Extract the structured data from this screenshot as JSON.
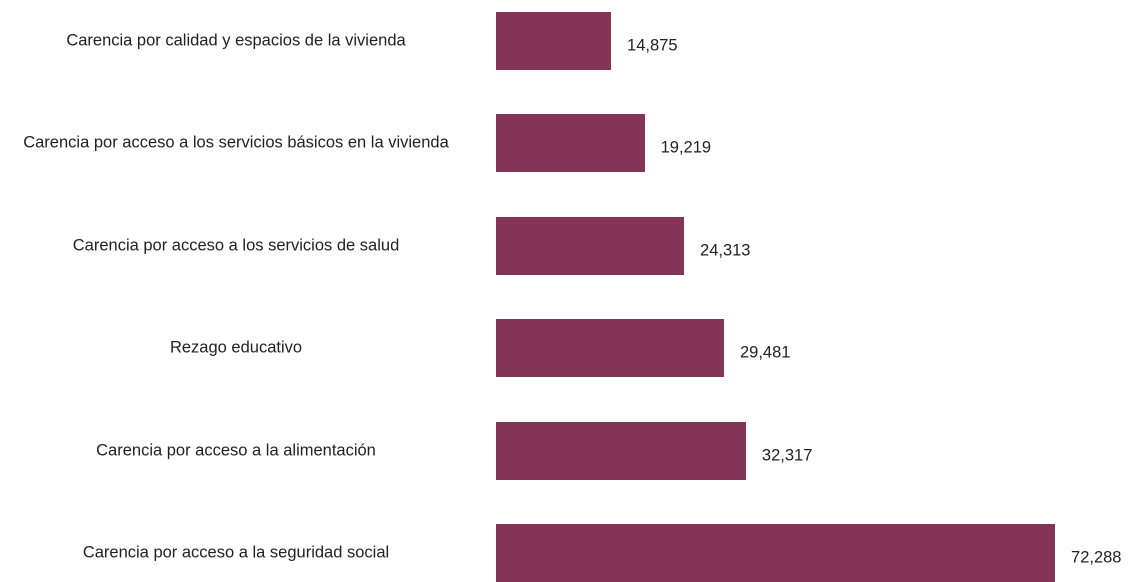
{
  "chart_data": {
    "type": "barh",
    "categories": [
      "Carencia por calidad y espacios de la vivienda",
      "Carencia por acceso a los servicios básicos en la vivienda",
      "Carencia por acceso a los servicios de salud",
      "Rezago educativo",
      "Carencia por acceso a la alimentación",
      "Carencia por acceso a la seguridad social"
    ],
    "values": [
      14875,
      19219,
      24313,
      29481,
      32317,
      72288
    ],
    "value_labels": [
      "14,875",
      "19,219",
      "24,313",
      "29,481",
      "32,317",
      "72,288"
    ],
    "color": "#833457",
    "xlim": [
      0,
      75000
    ]
  }
}
